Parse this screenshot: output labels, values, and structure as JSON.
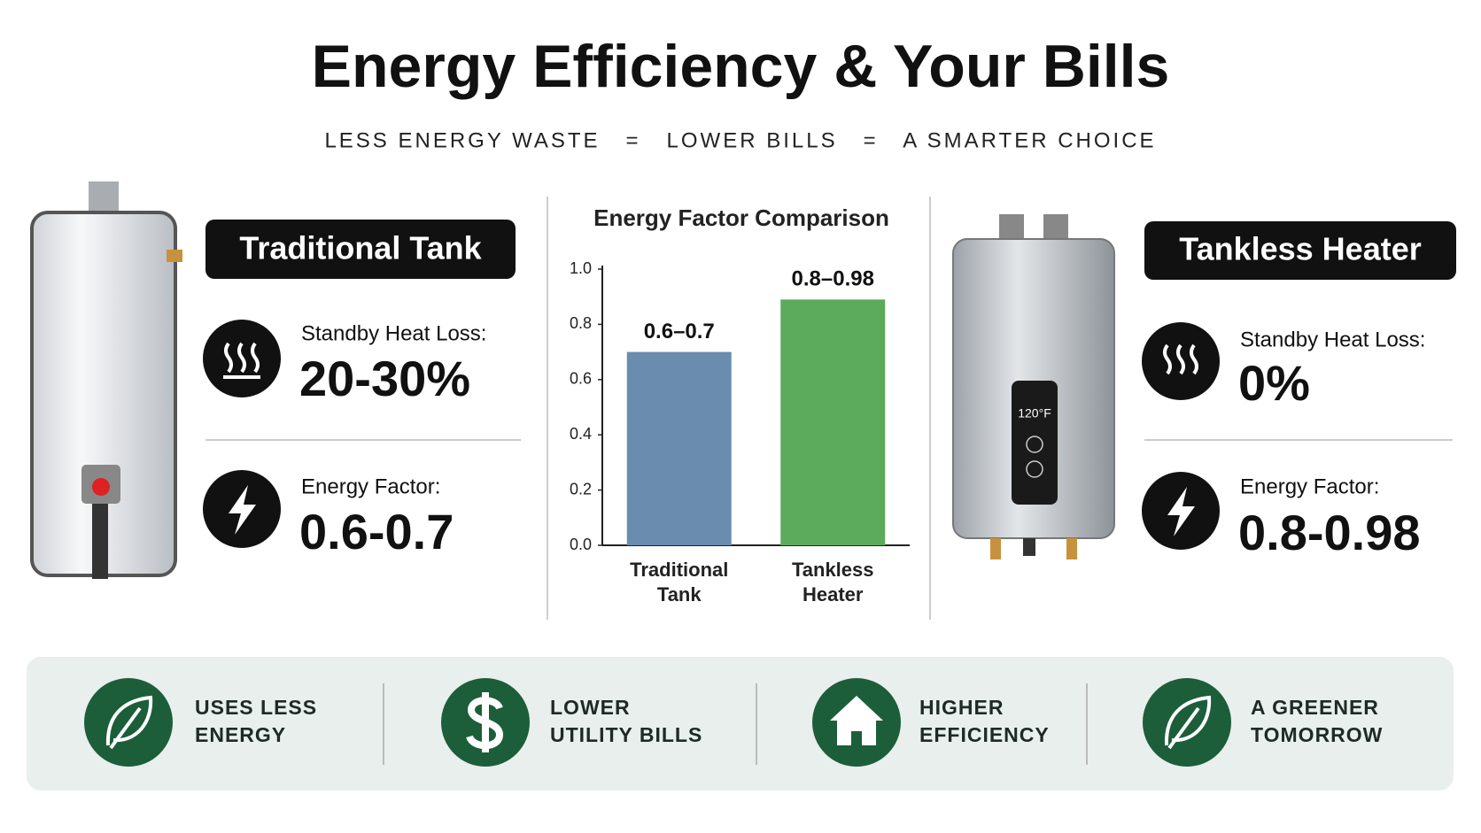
{
  "header": {
    "title": "Energy Efficiency & Your Bills",
    "subtitle": "LESS ENERGY WASTE   =   LOWER BILLS   =   A SMARTER CHOICE"
  },
  "left_panel": {
    "label": "Traditional Tank",
    "stats": [
      {
        "label": "Standby Heat Loss:",
        "value": "20-30%"
      },
      {
        "label": "Energy Factor:",
        "value": "0.6-0.7"
      }
    ]
  },
  "right_panel": {
    "label": "Tankless Heater",
    "display": "120°F",
    "stats": [
      {
        "label": "Standby Heat Loss:",
        "value": "0%"
      },
      {
        "label": "Energy Factor:",
        "value": "0.8-0.98"
      }
    ]
  },
  "chart_data": {
    "type": "bar",
    "title": "Energy Factor Comparison",
    "categories": [
      "Traditional Tank",
      "Tankless Heater"
    ],
    "values": [
      0.7,
      0.89
    ],
    "value_labels": [
      "0.6–0.7",
      "0.8–0.98"
    ],
    "colors": [
      "#6a8caf",
      "#5cab5c"
    ],
    "ylim": [
      0,
      1
    ],
    "yticks": [
      {
        "value": 0,
        "label": "0.0"
      },
      0.2,
      0.4,
      0.6,
      0.8,
      {
        "value": 1,
        "label": "1.0"
      }
    ]
  },
  "footer": {
    "items": [
      {
        "lines": [
          "USES LESS",
          "ENERGY"
        ]
      },
      {
        "lines": [
          "LOWER",
          "UTILITY BILLS"
        ]
      },
      {
        "lines": [
          "HIGHER",
          "EFFICIENCY"
        ]
      },
      {
        "lines": [
          "A GREENER",
          "TOMORROW"
        ]
      }
    ]
  }
}
